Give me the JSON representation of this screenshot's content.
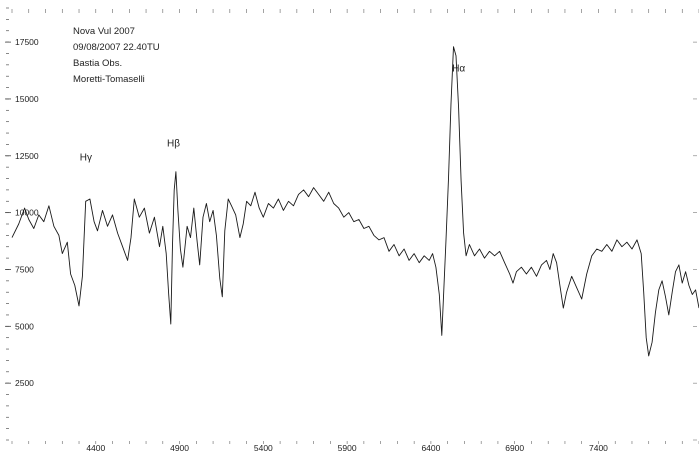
{
  "chart_data": {
    "type": "line",
    "title": "",
    "xlabel": "",
    "ylabel": "",
    "xlim": [
      3900,
      8000
    ],
    "ylim": [
      0,
      19000
    ],
    "x_ticks": [
      4400,
      4900,
      5400,
      5900,
      6400,
      6900,
      7400
    ],
    "y_ticks": [
      2500,
      5000,
      7500,
      10000,
      12500,
      15000,
      17500
    ],
    "grid": false,
    "annotation_lines": [
      "Nova Vul 2007",
      "09/08/2007 22.40TU",
      "Bastia Obs.",
      "Moretti-Tomaselli"
    ],
    "line_labels": [
      {
        "text": "Hγ",
        "x": 4340,
        "y": 12300
      },
      {
        "text": "Hβ",
        "x": 4861,
        "y": 12900
      },
      {
        "text": "Hα",
        "x": 6563,
        "y": 16200
      }
    ],
    "series": [
      {
        "values": [
          [
            3900,
            8900
          ],
          [
            3940,
            9500
          ],
          [
            3975,
            10200
          ],
          [
            4000,
            9700
          ],
          [
            4030,
            9300
          ],
          [
            4060,
            9900
          ],
          [
            4090,
            9600
          ],
          [
            4120,
            10300
          ],
          [
            4150,
            9400
          ],
          [
            4180,
            9000
          ],
          [
            4200,
            8200
          ],
          [
            4230,
            8700
          ],
          [
            4250,
            7300
          ],
          [
            4275,
            6800
          ],
          [
            4300,
            5900
          ],
          [
            4320,
            7200
          ],
          [
            4340,
            10500
          ],
          [
            4365,
            10600
          ],
          [
            4390,
            9600
          ],
          [
            4410,
            9200
          ],
          [
            4440,
            10100
          ],
          [
            4470,
            9400
          ],
          [
            4500,
            9900
          ],
          [
            4530,
            9100
          ],
          [
            4560,
            8500
          ],
          [
            4590,
            7900
          ],
          [
            4610,
            8900
          ],
          [
            4630,
            10600
          ],
          [
            4660,
            9800
          ],
          [
            4690,
            10200
          ],
          [
            4720,
            9100
          ],
          [
            4750,
            9800
          ],
          [
            4780,
            8500
          ],
          [
            4800,
            9400
          ],
          [
            4820,
            8200
          ],
          [
            4835,
            6400
          ],
          [
            4848,
            5100
          ],
          [
            4858,
            8600
          ],
          [
            4868,
            11000
          ],
          [
            4878,
            11800
          ],
          [
            4890,
            10100
          ],
          [
            4905,
            8400
          ],
          [
            4920,
            7600
          ],
          [
            4945,
            9400
          ],
          [
            4965,
            8900
          ],
          [
            4985,
            10200
          ],
          [
            5005,
            8700
          ],
          [
            5020,
            7700
          ],
          [
            5040,
            9800
          ],
          [
            5060,
            10400
          ],
          [
            5080,
            9600
          ],
          [
            5100,
            10100
          ],
          [
            5120,
            9000
          ],
          [
            5140,
            7100
          ],
          [
            5155,
            6300
          ],
          [
            5170,
            9200
          ],
          [
            5190,
            10600
          ],
          [
            5210,
            10300
          ],
          [
            5235,
            9900
          ],
          [
            5260,
            8900
          ],
          [
            5280,
            9500
          ],
          [
            5300,
            10500
          ],
          [
            5325,
            10300
          ],
          [
            5350,
            10900
          ],
          [
            5375,
            10200
          ],
          [
            5400,
            9800
          ],
          [
            5430,
            10400
          ],
          [
            5460,
            10200
          ],
          [
            5490,
            10600
          ],
          [
            5520,
            10100
          ],
          [
            5550,
            10500
          ],
          [
            5580,
            10300
          ],
          [
            5610,
            10800
          ],
          [
            5640,
            11000
          ],
          [
            5670,
            10700
          ],
          [
            5700,
            11100
          ],
          [
            5730,
            10800
          ],
          [
            5760,
            10500
          ],
          [
            5790,
            10900
          ],
          [
            5820,
            10400
          ],
          [
            5850,
            10200
          ],
          [
            5880,
            9800
          ],
          [
            5910,
            10000
          ],
          [
            5940,
            9600
          ],
          [
            5970,
            9700
          ],
          [
            6000,
            9300
          ],
          [
            6030,
            9400
          ],
          [
            6060,
            9000
          ],
          [
            6090,
            8800
          ],
          [
            6120,
            8900
          ],
          [
            6150,
            8300
          ],
          [
            6180,
            8600
          ],
          [
            6210,
            8100
          ],
          [
            6240,
            8400
          ],
          [
            6270,
            7900
          ],
          [
            6300,
            8200
          ],
          [
            6330,
            7800
          ],
          [
            6360,
            8100
          ],
          [
            6390,
            7900
          ],
          [
            6410,
            8200
          ],
          [
            6430,
            7600
          ],
          [
            6450,
            6400
          ],
          [
            6465,
            4600
          ],
          [
            6478,
            6800
          ],
          [
            6490,
            8800
          ],
          [
            6505,
            11500
          ],
          [
            6520,
            14800
          ],
          [
            6535,
            17300
          ],
          [
            6550,
            16900
          ],
          [
            6565,
            14600
          ],
          [
            6580,
            11400
          ],
          [
            6595,
            9100
          ],
          [
            6610,
            8100
          ],
          [
            6630,
            8600
          ],
          [
            6660,
            8100
          ],
          [
            6690,
            8400
          ],
          [
            6720,
            8000
          ],
          [
            6750,
            8300
          ],
          [
            6780,
            8100
          ],
          [
            6810,
            8300
          ],
          [
            6840,
            7800
          ],
          [
            6870,
            7300
          ],
          [
            6890,
            6900
          ],
          [
            6910,
            7400
          ],
          [
            6940,
            7600
          ],
          [
            6970,
            7300
          ],
          [
            7000,
            7600
          ],
          [
            7030,
            7200
          ],
          [
            7060,
            7700
          ],
          [
            7090,
            7900
          ],
          [
            7110,
            7500
          ],
          [
            7130,
            8200
          ],
          [
            7150,
            7800
          ],
          [
            7170,
            6800
          ],
          [
            7190,
            5800
          ],
          [
            7210,
            6500
          ],
          [
            7240,
            7200
          ],
          [
            7270,
            6700
          ],
          [
            7300,
            6200
          ],
          [
            7330,
            7300
          ],
          [
            7360,
            8100
          ],
          [
            7390,
            8400
          ],
          [
            7420,
            8300
          ],
          [
            7450,
            8600
          ],
          [
            7480,
            8300
          ],
          [
            7510,
            8800
          ],
          [
            7540,
            8500
          ],
          [
            7570,
            8700
          ],
          [
            7600,
            8400
          ],
          [
            7630,
            8800
          ],
          [
            7655,
            8200
          ],
          [
            7670,
            6500
          ],
          [
            7685,
            4500
          ],
          [
            7700,
            3700
          ],
          [
            7720,
            4300
          ],
          [
            7740,
            5600
          ],
          [
            7760,
            6600
          ],
          [
            7780,
            7000
          ],
          [
            7800,
            6300
          ],
          [
            7820,
            5500
          ],
          [
            7840,
            6500
          ],
          [
            7860,
            7400
          ],
          [
            7880,
            7700
          ],
          [
            7900,
            6900
          ],
          [
            7920,
            7400
          ],
          [
            7940,
            6800
          ],
          [
            7960,
            6400
          ],
          [
            7980,
            6600
          ],
          [
            8000,
            5800
          ]
        ]
      }
    ]
  }
}
